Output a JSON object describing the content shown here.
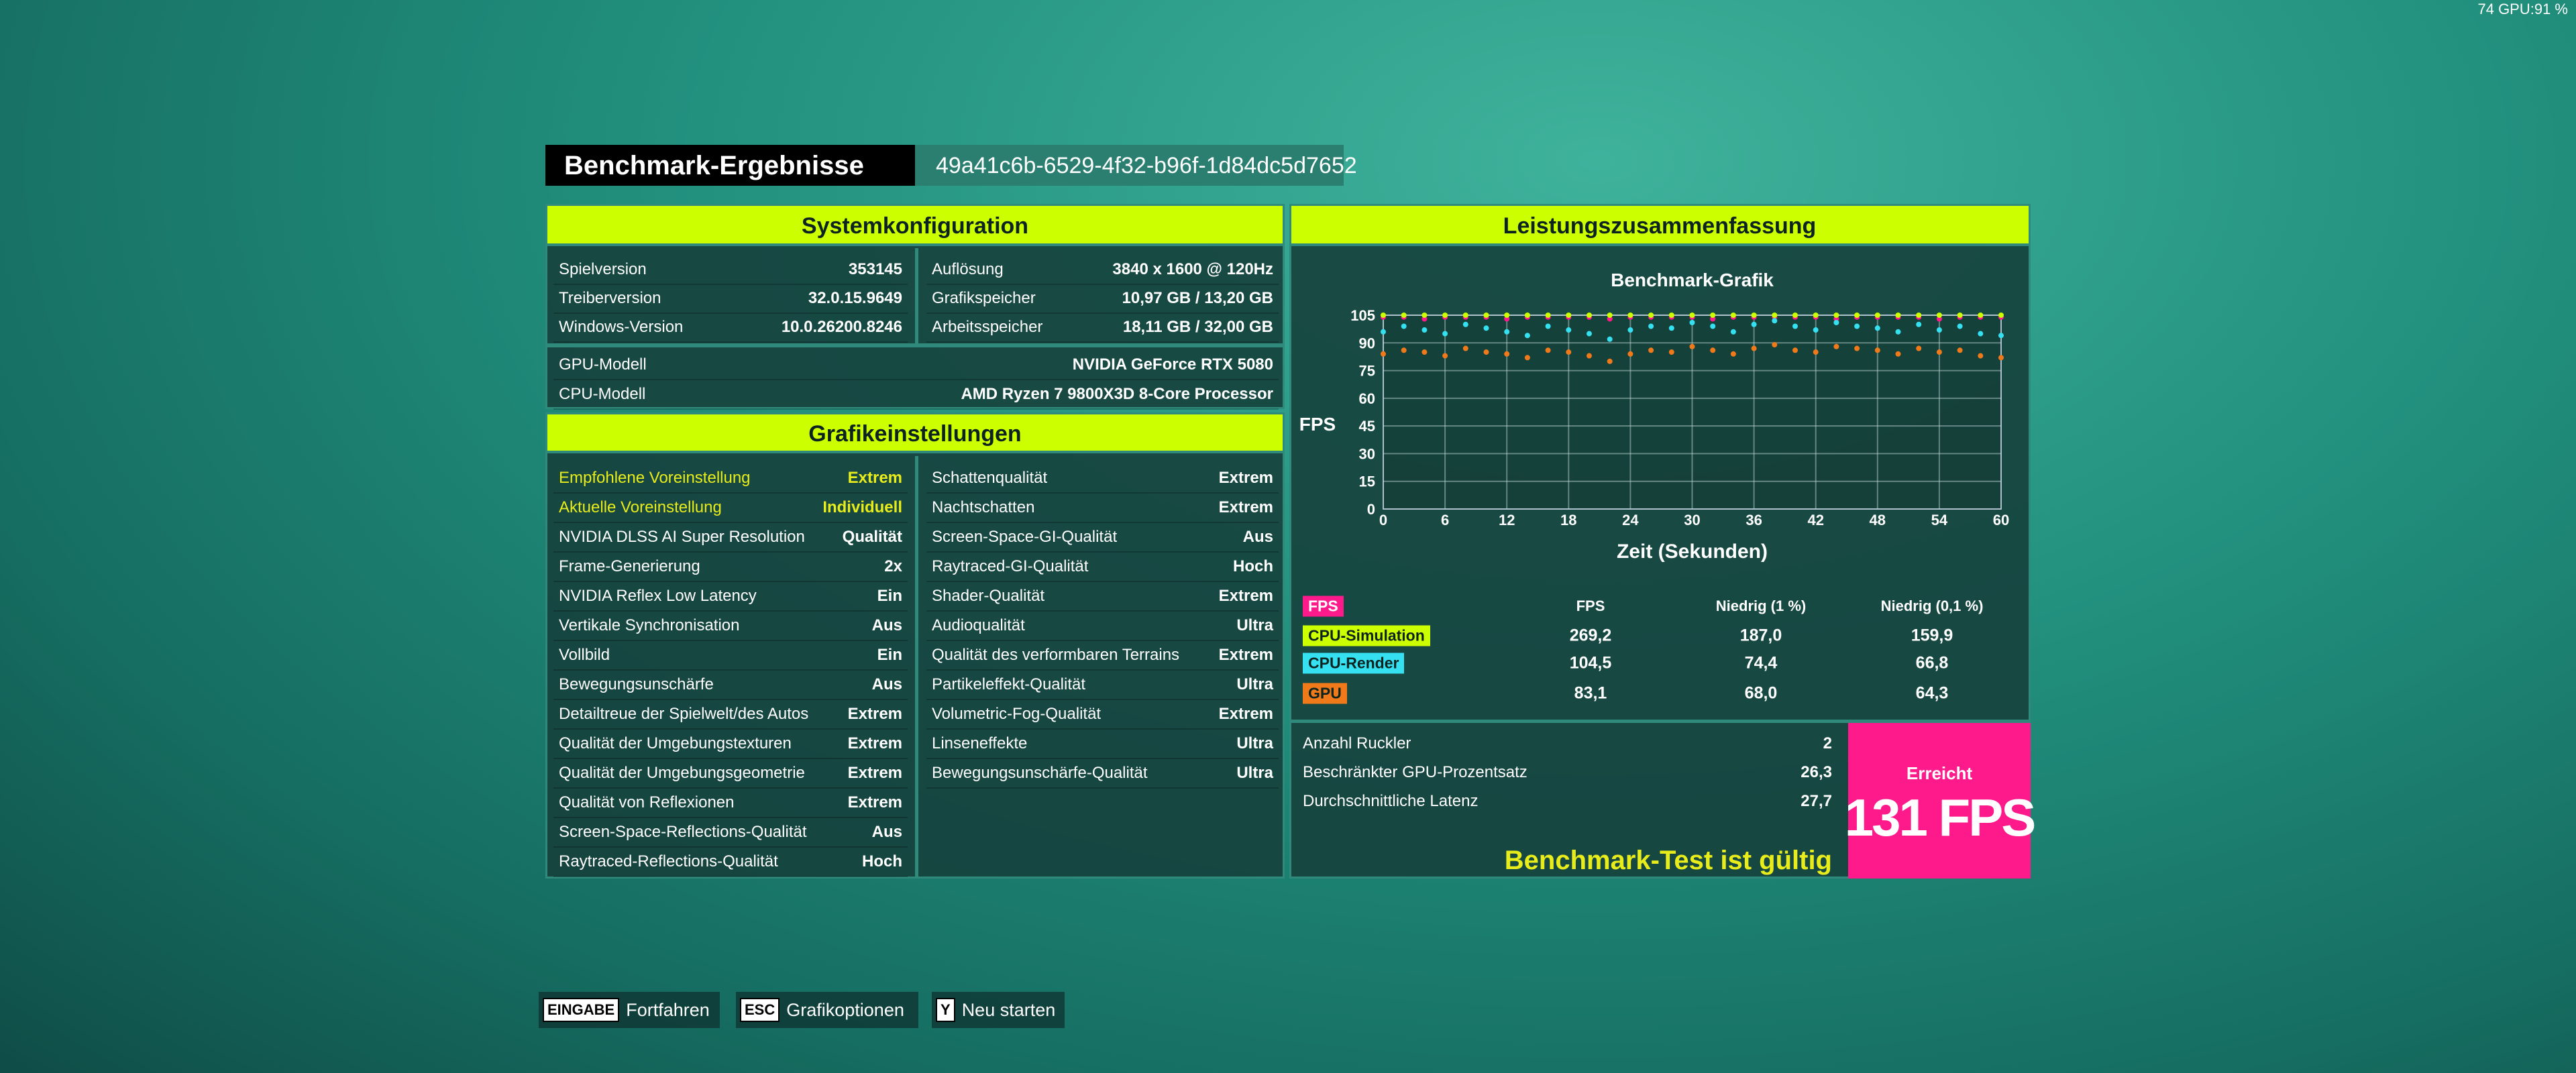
{
  "corner": "74 GPU:91 %",
  "header": {
    "title": "Benchmark-Ergebnisse",
    "id": "49a41c6b-6529-4f32-b96f-1d84dc5d7652"
  },
  "system": {
    "title": "Systemkonfiguration",
    "left": [
      [
        "Spielversion",
        "353145"
      ],
      [
        "Treiberversion",
        "32.0.15.9649"
      ],
      [
        "Windows-Version",
        "10.0.26200.8246"
      ]
    ],
    "right": [
      [
        "Auflösung",
        "3840 x 1600 @ 120Hz"
      ],
      [
        "Grafikspeicher",
        "10,97 GB / 13,20 GB"
      ],
      [
        "Arbeitsspeicher",
        "18,11 GB / 32,00 GB"
      ]
    ],
    "hardware": [
      [
        "GPU-Modell",
        "NVIDIA GeForce RTX 5080"
      ],
      [
        "CPU-Modell",
        "AMD Ryzen 7 9800X3D 8-Core Processor"
      ]
    ]
  },
  "graphics": {
    "title": "Grafikeinstellungen",
    "left": [
      [
        "Empfohlene Voreinstellung",
        "Extrem"
      ],
      [
        "Aktuelle Voreinstellung",
        "Individuell"
      ],
      [
        "NVIDIA DLSS AI Super Resolution",
        "Qualität"
      ],
      [
        "Frame-Generierung",
        "2x"
      ],
      [
        "NVIDIA Reflex Low Latency",
        "Ein"
      ],
      [
        "Vertikale Synchronisation",
        "Aus"
      ],
      [
        "Vollbild",
        "Ein"
      ],
      [
        "Bewegungsunschärfe",
        "Aus"
      ],
      [
        "Detailtreue der Spielwelt/des Autos",
        "Extrem"
      ],
      [
        "Qualität der Umgebungstexturen",
        "Extrem"
      ],
      [
        "Qualität der Umgebungsgeometrie",
        "Extrem"
      ],
      [
        "Qualität von Reflexionen",
        "Extrem"
      ],
      [
        "Screen-Space-Reflections-Qualität",
        "Aus"
      ],
      [
        "Raytraced-Reflections-Qualität",
        "Hoch"
      ]
    ],
    "right": [
      [
        "Schattenqualität",
        "Extrem"
      ],
      [
        "Nachtschatten",
        "Extrem"
      ],
      [
        "Screen-Space-GI-Qualität",
        "Aus"
      ],
      [
        "Raytraced-GI-Qualität",
        "Hoch"
      ],
      [
        "Shader-Qualität",
        "Extrem"
      ],
      [
        "Audioqualität",
        "Ultra"
      ],
      [
        "Qualität des verformbaren Terrains",
        "Extrem"
      ],
      [
        "Partikeleffekt-Qualität",
        "Ultra"
      ],
      [
        "Volumetric-Fog-Qualität",
        "Extrem"
      ],
      [
        "Linseneffekte",
        "Ultra"
      ],
      [
        "Bewegungsunschärfe-Qualität",
        "Ultra"
      ]
    ]
  },
  "summary": {
    "title": "Leistungszusammenfassung",
    "table": {
      "columns": [
        "FPS",
        "Niedrig (1 %)",
        "Niedrig (0,1 %)"
      ],
      "rows": [
        [
          "269,2",
          "187,0",
          "159,9"
        ],
        [
          "104,5",
          "74,4",
          "66,8"
        ],
        [
          "83,1",
          "68,0",
          "64,3"
        ]
      ]
    },
    "stats": [
      [
        "Anzahl Ruckler",
        "2"
      ],
      [
        "Beschränkter GPU-Prozentsatz",
        "26,3"
      ],
      [
        "Durchschnittliche Latenz",
        "27,7"
      ]
    ],
    "valid": "Benchmark-Test ist gültig",
    "achieved": "Erreicht",
    "result": "131 FPS"
  },
  "chart_data": {
    "type": "scatter",
    "title": "Benchmark-Grafik",
    "y_label": "FPS",
    "x_label": "Zeit (Sekunden)",
    "xlim": [
      0,
      60
    ],
    "ylim": [
      0,
      105
    ],
    "xticks": [
      0,
      6,
      12,
      18,
      24,
      30,
      36,
      42,
      48,
      54,
      60
    ],
    "yticks": [
      0,
      15,
      30,
      45,
      60,
      75,
      90,
      105
    ],
    "grid": true,
    "x": [
      0,
      2,
      4,
      6,
      8,
      10,
      12,
      14,
      16,
      18,
      20,
      22,
      24,
      26,
      28,
      30,
      32,
      34,
      36,
      38,
      40,
      42,
      44,
      46,
      48,
      50,
      52,
      54,
      56,
      58,
      60
    ],
    "series": [
      {
        "name": "FPS",
        "color": "#ff1a8c",
        "values": [
          104,
          104,
          103,
          104,
          104,
          104,
          103,
          104,
          104,
          104,
          104,
          103,
          104,
          104,
          104,
          104,
          103,
          104,
          104,
          104,
          104,
          104,
          103,
          104,
          104,
          104,
          104,
          103,
          104,
          104,
          104
        ]
      },
      {
        "name": "CPU-Simulation",
        "color": "#ccff00",
        "values": [
          105,
          105,
          105,
          105,
          105,
          105,
          105,
          105,
          105,
          105,
          105,
          105,
          105,
          105,
          105,
          105,
          105,
          105,
          105,
          105,
          105,
          105,
          105,
          105,
          105,
          105,
          105,
          105,
          105,
          105,
          105
        ]
      },
      {
        "name": "CPU-Render",
        "color": "#35e0f0",
        "values": [
          96,
          99,
          97,
          95,
          100,
          98,
          96,
          94,
          99,
          97,
          95,
          92,
          97,
          99,
          98,
          101,
          99,
          96,
          100,
          102,
          99,
          97,
          101,
          99,
          98,
          96,
          100,
          97,
          99,
          95,
          94
        ]
      },
      {
        "name": "GPU",
        "color": "#f07a1a",
        "values": [
          84,
          86,
          85,
          83,
          87,
          85,
          84,
          82,
          86,
          85,
          83,
          80,
          84,
          86,
          85,
          88,
          86,
          84,
          87,
          89,
          86,
          85,
          88,
          87,
          86,
          84,
          87,
          85,
          86,
          83,
          82
        ]
      }
    ]
  },
  "footer": [
    [
      "EINGABE",
      "Fortfahren"
    ],
    [
      "ESC",
      "Grafikoptionen"
    ],
    [
      "Y",
      "Neu starten"
    ]
  ]
}
